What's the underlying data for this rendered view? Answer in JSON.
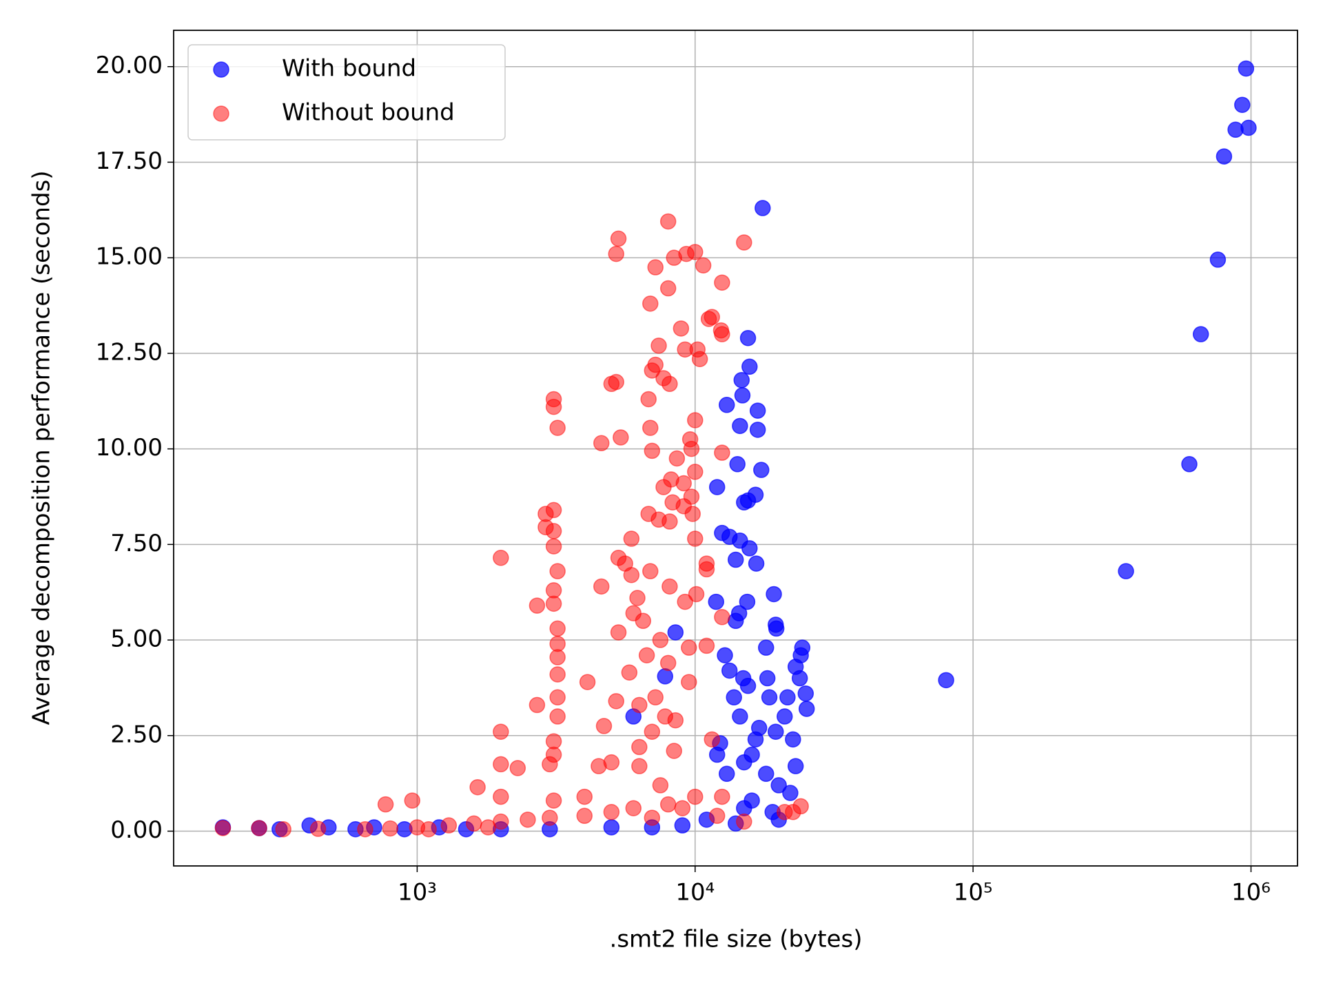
{
  "chart_data": {
    "type": "scatter",
    "xlabel": ".smt2 file size (bytes)",
    "ylabel": "Average decomposition performance (seconds)",
    "xscale": "log",
    "xlim": [
      133,
      1470000
    ],
    "ylim": [
      -0.91,
      20.95
    ],
    "xticks": [
      {
        "value": 1000,
        "label": "10³"
      },
      {
        "value": 10000,
        "label": "10⁴"
      },
      {
        "value": 100000,
        "label": "10⁵"
      },
      {
        "value": 1000000,
        "label": "10⁶"
      }
    ],
    "yticks": [
      {
        "value": 0,
        "label": "0.00"
      },
      {
        "value": 2.5,
        "label": "2.50"
      },
      {
        "value": 5,
        "label": "5.00"
      },
      {
        "value": 7.5,
        "label": "7.50"
      },
      {
        "value": 10,
        "label": "10.00"
      },
      {
        "value": 12.5,
        "label": "12.50"
      },
      {
        "value": 15,
        "label": "15.00"
      },
      {
        "value": 17.5,
        "label": "17.50"
      },
      {
        "value": 20,
        "label": "20.00"
      }
    ],
    "grid": true,
    "legend": "upper-left",
    "series": [
      {
        "name": "With bound",
        "color": "#0000ff",
        "alpha": 0.7,
        "x": [
          960000,
          930000,
          880000,
          980000,
          800000,
          760000,
          660000,
          600000,
          355000,
          80000,
          17500,
          15500,
          15700,
          14700,
          14800,
          13000,
          16800,
          14500,
          16800,
          14200,
          17300,
          12000,
          16500,
          15500,
          15000,
          12500,
          13300,
          14500,
          15700,
          14000,
          16600,
          19200,
          11900,
          15400,
          14400,
          14000,
          19500,
          19600,
          8500,
          24300,
          18000,
          24000,
          12800,
          23000,
          13300,
          7800,
          14900,
          18200,
          23800,
          15500,
          25000,
          21500,
          18500,
          13800,
          25200,
          21000,
          14500,
          6000,
          17000,
          19500,
          22500,
          16500,
          12300,
          16000,
          15000,
          18000,
          23000,
          20000,
          22000,
          16000,
          15000,
          19000,
          20000,
          14000,
          200,
          270,
          320,
          410,
          480,
          600,
          700,
          900,
          1200,
          1500,
          2000,
          3000,
          5000,
          7000,
          9000,
          11000,
          13000,
          12000
        ],
        "values": [
          19.95,
          19.0,
          18.35,
          18.4,
          17.65,
          14.95,
          13.0,
          9.6,
          6.8,
          3.95,
          16.3,
          12.9,
          12.15,
          11.8,
          11.4,
          11.15,
          11.0,
          10.6,
          10.5,
          9.6,
          9.45,
          9.0,
          8.8,
          8.65,
          8.6,
          7.8,
          7.7,
          7.6,
          7.4,
          7.1,
          7.0,
          6.2,
          6.0,
          6.0,
          5.7,
          5.5,
          5.4,
          5.3,
          5.2,
          4.8,
          4.8,
          4.6,
          4.6,
          4.3,
          4.2,
          4.05,
          4.0,
          4.0,
          4.0,
          3.8,
          3.6,
          3.5,
          3.5,
          3.5,
          3.2,
          3.0,
          3.0,
          3.0,
          2.7,
          2.6,
          2.4,
          2.4,
          2.3,
          2.0,
          1.8,
          1.5,
          1.7,
          1.2,
          1.0,
          0.8,
          0.6,
          0.5,
          0.3,
          0.2,
          0.1,
          0.08,
          0.05,
          0.15,
          0.1,
          0.05,
          0.1,
          0.05,
          0.1,
          0.05,
          0.05,
          0.05,
          0.1,
          0.1,
          0.15,
          0.3,
          1.5,
          2.0
        ]
      },
      {
        "name": "Without bound",
        "color": "#ff0000",
        "alpha": 0.5,
        "x": [
          8000,
          5300,
          5200,
          10000,
          9300,
          8400,
          15000,
          7200,
          10700,
          12500,
          8000,
          6900,
          11200,
          11500,
          8900,
          12400,
          12500,
          7400,
          9200,
          10200,
          10400,
          7200,
          7000,
          7700,
          8100,
          5200,
          5000,
          3100,
          3100,
          6800,
          3200,
          10000,
          6900,
          5400,
          4600,
          9600,
          9700,
          7000,
          12500,
          8600,
          8200,
          9100,
          7700,
          10000,
          9700,
          8300,
          9100,
          6800,
          9800,
          2900,
          3100,
          7400,
          8100,
          2900,
          3100,
          10000,
          5900,
          3100,
          2000,
          5300,
          5600,
          11000,
          6900,
          3200,
          5900,
          11000,
          8100,
          4600,
          3100,
          6200,
          9200,
          10100,
          2700,
          3100,
          6000,
          12500,
          6500,
          3200,
          7500,
          5300,
          9500,
          11000,
          3200,
          6700,
          3200,
          8000,
          5800,
          4100,
          3200,
          9500,
          7200,
          5200,
          3200,
          2700,
          6300,
          7800,
          3200,
          4700,
          8500,
          2000,
          7000,
          3100,
          11500,
          6300,
          8400,
          3100,
          2000,
          2300,
          5000,
          6300,
          4500,
          3000,
          1650,
          2000,
          960,
          770,
          4000,
          7500,
          10000,
          12500,
          3100,
          24000,
          21000,
          22500,
          15000,
          12000,
          200,
          270,
          330,
          440,
          650,
          800,
          1000,
          1300,
          1600,
          2000,
          2500,
          3000,
          4000,
          5000,
          6000,
          8000,
          9000,
          7000,
          1100,
          1800
        ],
        "values": [
          15.95,
          15.5,
          15.1,
          15.15,
          15.1,
          15.0,
          15.4,
          14.75,
          14.8,
          14.35,
          14.2,
          13.8,
          13.4,
          13.45,
          13.15,
          13.1,
          13.0,
          12.7,
          12.6,
          12.6,
          12.35,
          12.2,
          12.05,
          11.85,
          11.7,
          11.75,
          11.7,
          11.3,
          11.1,
          11.3,
          10.55,
          10.75,
          10.55,
          10.3,
          10.15,
          10.25,
          10.0,
          9.95,
          9.9,
          9.75,
          9.2,
          9.1,
          9.0,
          9.4,
          8.75,
          8.6,
          8.5,
          8.3,
          8.3,
          8.3,
          8.4,
          8.15,
          8.1,
          7.95,
          7.85,
          7.65,
          7.65,
          7.45,
          7.15,
          7.15,
          7.0,
          7.0,
          6.8,
          6.8,
          6.7,
          6.85,
          6.4,
          6.4,
          6.3,
          6.1,
          6.0,
          6.2,
          5.9,
          5.95,
          5.7,
          5.6,
          5.5,
          5.3,
          5.0,
          5.2,
          4.8,
          4.85,
          4.9,
          4.6,
          4.55,
          4.4,
          4.15,
          3.9,
          4.1,
          3.9,
          3.5,
          3.4,
          3.5,
          3.3,
          3.3,
          3.0,
          3.0,
          2.75,
          2.9,
          2.6,
          2.6,
          2.35,
          2.4,
          2.2,
          2.1,
          2.0,
          1.75,
          1.65,
          1.8,
          1.7,
          1.7,
          1.75,
          1.15,
          0.9,
          0.8,
          0.7,
          0.9,
          1.2,
          0.9,
          0.9,
          0.8,
          0.65,
          0.5,
          0.5,
          0.25,
          0.4,
          0.08,
          0.08,
          0.05,
          0.06,
          0.05,
          0.07,
          0.1,
          0.15,
          0.2,
          0.25,
          0.3,
          0.35,
          0.4,
          0.5,
          0.6,
          0.7,
          0.6,
          0.35,
          0.05,
          0.1
        ]
      }
    ]
  }
}
